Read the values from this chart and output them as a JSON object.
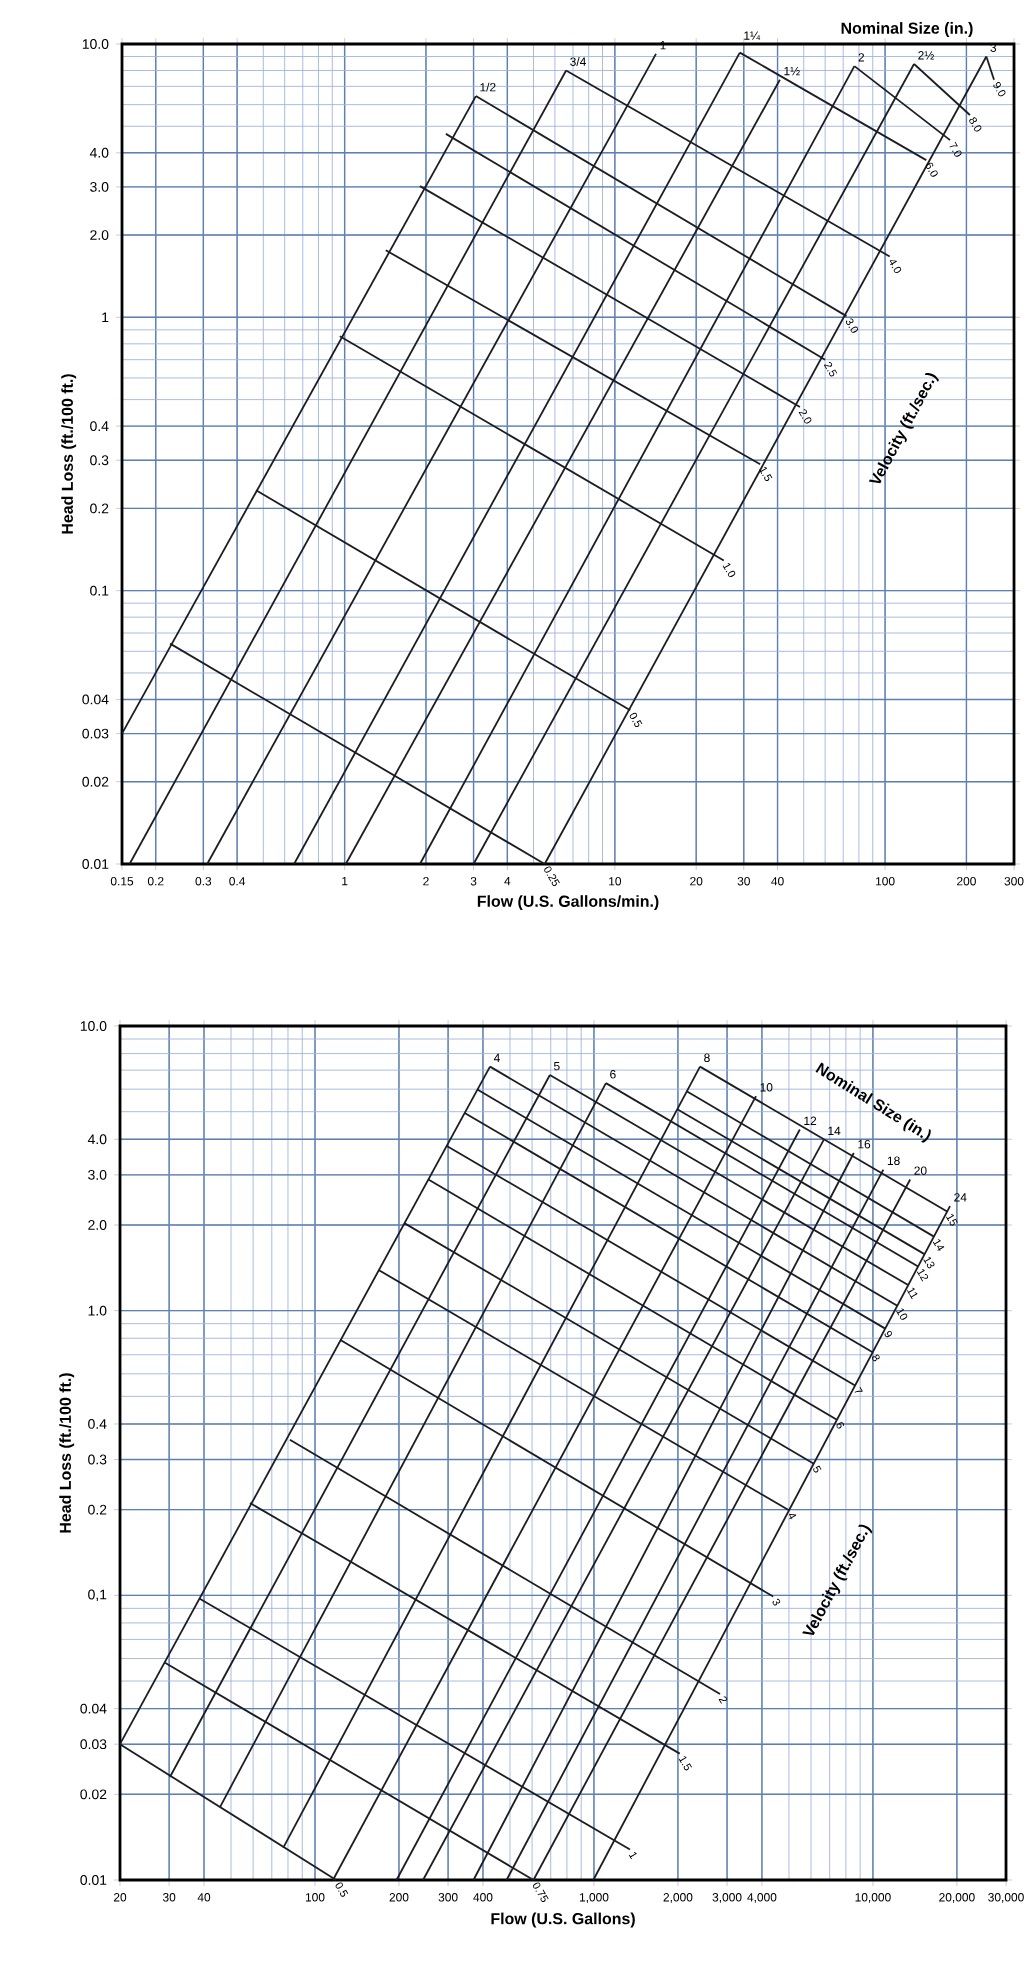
{
  "chart_data": [
    {
      "type": "line",
      "xlabel": "Flow (U.S. Gallons/min.)",
      "ylabel": "Head Loss (ft./100 ft.)",
      "annotations": [
        "Nominal Size (in.)",
        "Velocity (ft./sec.)"
      ],
      "color": "#1c1c24",
      "log": "xy",
      "grid": true,
      "xlim": [
        0.15,
        300
      ],
      "ylim": [
        0.01,
        10
      ],
      "xticks": [
        0.15,
        0.2,
        0.3,
        0.4,
        1,
        2,
        3,
        4,
        10,
        20,
        30,
        40,
        100,
        200,
        300
      ],
      "yticks": [
        0.01,
        0.02,
        0.03,
        0.04,
        0.1,
        0.2,
        0.3,
        0.4,
        1,
        {
          "value": 2,
          "label": "2.0"
        },
        {
          "value": 3,
          "label": "3.0"
        },
        {
          "value": 4,
          "label": "4.0"
        },
        {
          "value": 10,
          "label": "10.0"
        }
      ],
      "series": [
        {
          "name": "1/2",
          "x": [
            0.15,
            3.06
          ],
          "values": [
            0.03,
            6.45
          ]
        },
        {
          "name": "3/4",
          "x": [
            0.16,
            6.6
          ],
          "values": [
            0.01,
            8.0
          ]
        },
        {
          "name": "1",
          "x": [
            0.31,
            14.2
          ],
          "values": [
            0.01,
            9.2
          ]
        },
        {
          "name": "1¼",
          "x": [
            0.65,
            29
          ],
          "values": [
            0.01,
            9.3
          ]
        },
        {
          "name": "1½",
          "x": [
            1.01,
            40.8
          ],
          "values": [
            0.01,
            7.4
          ]
        },
        {
          "name": "2",
          "x": [
            1.9,
            77
          ],
          "values": [
            0.01,
            8.3
          ]
        },
        {
          "name": "2½",
          "x": [
            3.0,
            128
          ],
          "values": [
            0.01,
            8.45
          ]
        },
        {
          "name": "3",
          "x": [
            5.5,
            237
          ],
          "values": [
            0.01,
            9.0
          ]
        },
        {
          "name": "0.25",
          "x": [
            0.226,
            5.5
          ],
          "values": [
            0.064,
            0.01
          ]
        },
        {
          "name": "0.5",
          "x": [
            0.47,
            11.4
          ],
          "values": [
            0.233,
            0.0365
          ]
        },
        {
          "name": "1.0",
          "x": [
            0.96,
            25.3
          ],
          "values": [
            0.853,
            0.129
          ]
        },
        {
          "name": "1.5",
          "x": [
            1.42,
            34.5
          ],
          "values": [
            1.76,
            0.29
          ]
        },
        {
          "name": "2.0",
          "x": [
            1.9,
            48.4
          ],
          "values": [
            3.02,
            0.47
          ]
        },
        {
          "name": "2.5",
          "x": [
            2.37,
            60
          ],
          "values": [
            4.69,
            0.7
          ]
        },
        {
          "name": "3.0",
          "x": [
            3.06,
            72
          ],
          "values": [
            6.45,
            1.01
          ]
        },
        {
          "name": "4.0",
          "x": [
            6.6,
            104
          ],
          "values": [
            8.0,
            1.67
          ]
        },
        {
          "name": "6.0",
          "x": [
            29,
            142
          ],
          "values": [
            9.3,
            3.76
          ]
        },
        {
          "name": "7.0",
          "x": [
            77,
            174
          ],
          "values": [
            8.3,
            4.45
          ]
        },
        {
          "name": "8.0",
          "x": [
            128,
            206
          ],
          "values": [
            8.45,
            5.5
          ]
        },
        {
          "name": "9.0",
          "x": [
            237,
            253
          ],
          "values": [
            9.0,
            7.4
          ]
        }
      ]
    },
    {
      "type": "line",
      "xlabel": "Flow (U.S. Gallons)",
      "ylabel": "Head Loss (ft./100 ft.)",
      "annotations": [
        "Nominal Size (in.)",
        "Velocity (ft./sec.)"
      ],
      "color": "#1c1c24",
      "log": "xy",
      "grid": true,
      "xlim": [
        20,
        30000
      ],
      "ylim": [
        0.01,
        10
      ],
      "xticks": [
        20,
        30,
        40,
        100,
        200,
        300,
        400,
        {
          "value": 1000,
          "label": "1,000"
        },
        {
          "value": 2000,
          "label": "2,000"
        },
        {
          "value": 3000,
          "label": "3,000"
        },
        {
          "value": 4000,
          "label": "4,000"
        },
        {
          "value": 10000,
          "label": "10,000"
        },
        {
          "value": 20000,
          "label": "20,000"
        },
        {
          "value": 30000,
          "label": "30,000"
        }
      ],
      "yticks": [
        0.01,
        0.02,
        0.03,
        0.04,
        {
          "value": 0.1,
          "label": "0,1"
        },
        0.2,
        0.3,
        0.4,
        {
          "value": 1,
          "label": "1.0"
        },
        {
          "value": 2,
          "label": "2.0"
        },
        {
          "value": 3,
          "label": "3.0"
        },
        {
          "value": 4,
          "label": "4.0"
        },
        {
          "value": 10,
          "label": "10.0"
        }
      ],
      "series": [
        {
          "name": "4",
          "x": [
            20,
            424
          ],
          "values": [
            0.03,
            7.2
          ]
        },
        {
          "name": "5",
          "x": [
            30.2,
            695
          ],
          "values": [
            0.023,
            6.73
          ]
        },
        {
          "name": "6",
          "x": [
            45.6,
            1104
          ],
          "values": [
            0.018,
            6.3
          ]
        },
        {
          "name": "8",
          "x": [
            77,
            2400
          ],
          "values": [
            0.013,
            7.2
          ]
        },
        {
          "name": "10",
          "x": [
            116,
            3810
          ],
          "values": [
            0.01,
            5.67
          ]
        },
        {
          "name": "12",
          "x": [
            196,
            5470
          ],
          "values": [
            0.01,
            4.33
          ]
        },
        {
          "name": "14",
          "x": [
            244,
            6670
          ],
          "values": [
            0.01,
            3.99
          ]
        },
        {
          "name": "16",
          "x": [
            370,
            8540
          ],
          "values": [
            0.01,
            3.58
          ]
        },
        {
          "name": "18",
          "x": [
            486,
            10900
          ],
          "values": [
            0.01,
            3.13
          ]
        },
        {
          "name": "20",
          "x": [
            607,
            13600
          ],
          "values": [
            0.01,
            2.89
          ]
        },
        {
          "name": "24",
          "x": [
            995,
            18900
          ],
          "values": [
            0.01,
            2.33
          ]
        },
        {
          "name": "0.5",
          "x": [
            20,
            119
          ],
          "values": [
            0.03,
            0.01
          ]
        },
        {
          "name": "0.75",
          "x": [
            29,
            607
          ],
          "values": [
            0.058,
            0.01
          ]
        },
        {
          "name": "1",
          "x": [
            38.5,
            1346
          ],
          "values": [
            0.0975,
            0.0128
          ]
        },
        {
          "name": "1.5",
          "x": [
            58.5,
            2030
          ],
          "values": [
            0.211,
            0.0278
          ]
        },
        {
          "name": "2",
          "x": [
            81.3,
            2830
          ],
          "values": [
            0.352,
            0.045
          ]
        },
        {
          "name": "3",
          "x": [
            123,
            4390
          ],
          "values": [
            0.79,
            0.099
          ]
        },
        {
          "name": "4",
          "x": [
            169,
            5000
          ],
          "values": [
            1.39,
            0.199
          ]
        },
        {
          "name": "5",
          "x": [
            209,
            6140
          ],
          "values": [
            2.03,
            0.29
          ]
        },
        {
          "name": "6",
          "x": [
            255,
            7430
          ],
          "values": [
            2.89,
            0.414
          ]
        },
        {
          "name": "7",
          "x": [
            297,
            8630
          ],
          "values": [
            3.79,
            0.546
          ]
        },
        {
          "name": "8",
          "x": [
            344,
            9980
          ],
          "values": [
            4.95,
            0.714
          ]
        },
        {
          "name": "9",
          "x": [
            382,
            11070
          ],
          "values": [
            5.98,
            0.865
          ]
        },
        {
          "name": "10",
          "x": [
            424,
            12230
          ],
          "values": [
            7.2,
            1.04
          ]
        },
        {
          "name": "11",
          "x": [
            695,
            13370
          ],
          "values": [
            6.73,
            1.23
          ]
        },
        {
          "name": "12",
          "x": [
            1104,
            14520
          ],
          "values": [
            6.3,
            1.43
          ]
        },
        {
          "name": "13",
          "x": [
            1990,
            15300
          ],
          "values": [
            5.1,
            1.58
          ]
        },
        {
          "name": "14",
          "x": [
            2150,
            16560
          ],
          "values": [
            5.9,
            1.82
          ]
        },
        {
          "name": "15",
          "x": [
            2400,
            18450
          ],
          "values": [
            7.2,
            2.23
          ]
        }
      ]
    }
  ]
}
